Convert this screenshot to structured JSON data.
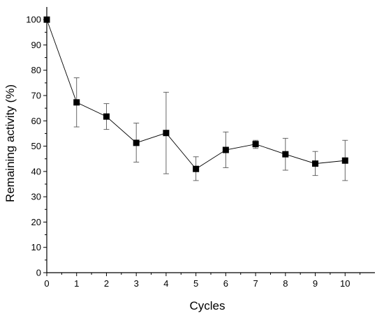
{
  "chart_data": {
    "type": "line",
    "xlabel": "Cycles",
    "ylabel": "Remaining activity (%)",
    "xlim": [
      0,
      11
    ],
    "ylim": [
      0,
      105
    ],
    "xticks": [
      "0",
      "1",
      "2",
      "3",
      "4",
      "5",
      "6",
      "7",
      "8",
      "9",
      "10"
    ],
    "yticks": [
      "0",
      "10",
      "20",
      "30",
      "40",
      "50",
      "60",
      "70",
      "80",
      "90",
      "100"
    ],
    "grid": false,
    "legend": "none",
    "series": [
      {
        "x": [
          0,
          1,
          2,
          3,
          4,
          5,
          6,
          7,
          8,
          9,
          10
        ],
        "y": [
          100,
          67.3,
          61.7,
          51.3,
          55.2,
          41.0,
          48.5,
          50.8,
          46.8,
          43.1,
          44.3
        ],
        "err_upper": [
          100,
          77.0,
          66.8,
          59.1,
          71.3,
          45.8,
          55.6,
          52.3,
          53.1,
          47.9,
          52.3
        ],
        "err_lower": [
          100,
          57.6,
          56.6,
          43.7,
          39.1,
          36.4,
          41.5,
          49.1,
          40.5,
          38.4,
          36.4
        ]
      }
    ]
  }
}
